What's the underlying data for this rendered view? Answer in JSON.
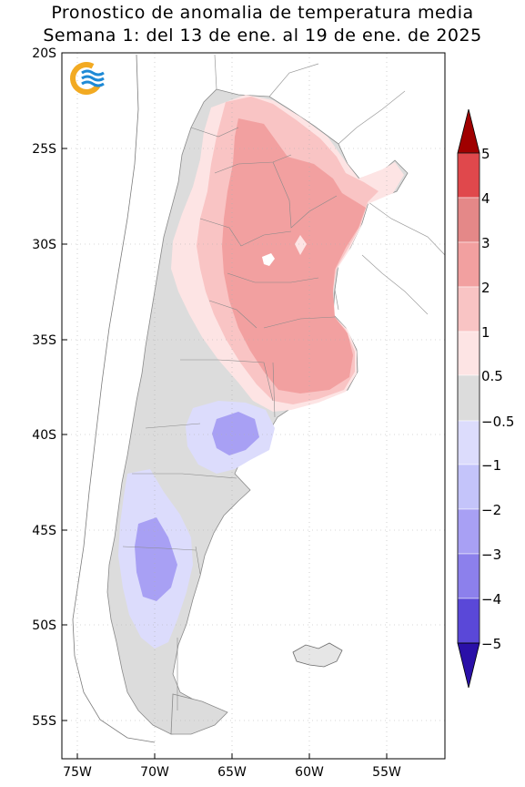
{
  "title_line1": "Pronostico de anomalia de temperatura media",
  "title_line2": "Semana 1: del 13 de ene. al 19 de ene. de 2025",
  "lat_ticks": [
    "20S",
    "25S",
    "30S",
    "35S",
    "40S",
    "45S",
    "50S",
    "55S"
  ],
  "lon_ticks": [
    "75W",
    "70W",
    "65W",
    "60W",
    "55W"
  ],
  "colorbar": {
    "labels": [
      "5",
      "4",
      "3",
      "2",
      "1",
      "0.5",
      "−0.5",
      "−1",
      "−2",
      "−3",
      "−4",
      "−5"
    ],
    "colors_top_to_bottom": [
      "#e0484c",
      "#e48888",
      "#f2a0a0",
      "#f9c4c4",
      "#fde4e4",
      "#dcdcdc",
      "#dcdcfc",
      "#c4c4fa",
      "#a8a0f4",
      "#8c80ec",
      "#5a48d8"
    ],
    "arrow_top": "#a00000",
    "arrow_bottom": "#2a10a8"
  },
  "logo": "smn-logo"
}
